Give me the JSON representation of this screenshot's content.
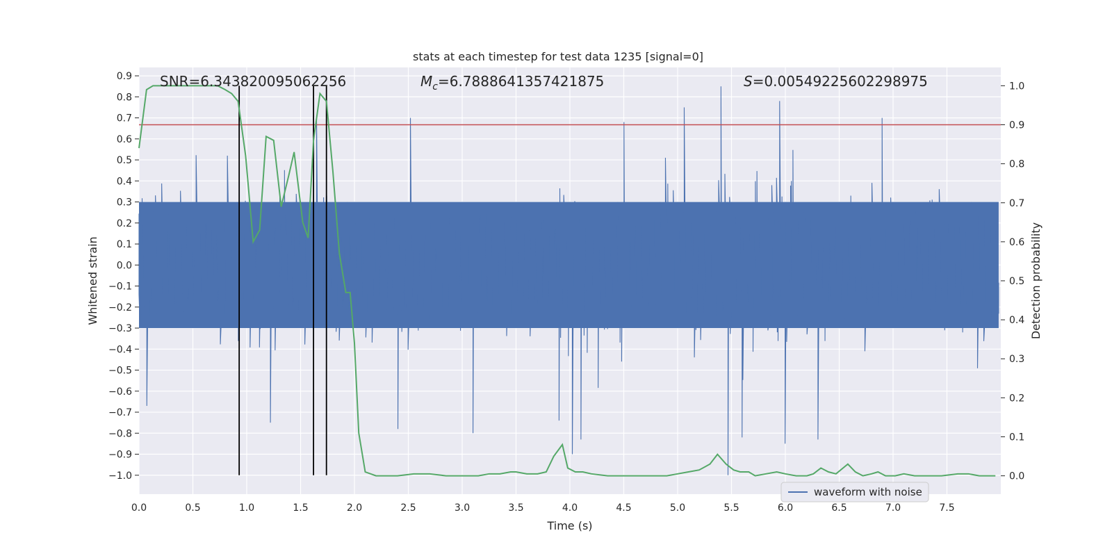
{
  "chart_data": {
    "type": "line",
    "title": "stats at each timestep for test data 1235 [signal=0]",
    "xlabel": "Time (s)",
    "ylabel": "Whitened strain",
    "y2label": "Detection probability",
    "xlim": [
      0.0,
      8.0
    ],
    "ylim": [
      -1.09,
      0.94
    ],
    "y2lim": [
      -0.047,
      1.047
    ],
    "x_ticks": [
      0.0,
      0.5,
      1.0,
      1.5,
      2.0,
      2.5,
      3.0,
      3.5,
      4.0,
      4.5,
      5.0,
      5.5,
      6.0,
      6.5,
      7.0,
      7.5
    ],
    "x_tick_labels": [
      "0.0",
      "0.5",
      "1.0",
      "1.5",
      "2.0",
      "2.5",
      "3.0",
      "3.5",
      "4.0",
      "4.5",
      "5.0",
      "5.5",
      "6.0",
      "6.5",
      "7.0",
      "7.5"
    ],
    "y_ticks": [
      -1.0,
      -0.9,
      -0.8,
      -0.7,
      -0.6,
      -0.5,
      -0.4,
      -0.3,
      -0.2,
      -0.1,
      0.0,
      0.1,
      0.2,
      0.3,
      0.4,
      0.5,
      0.6,
      0.7,
      0.8,
      0.9
    ],
    "y_tick_labels": [
      "−1.0",
      "−0.9",
      "−0.8",
      "−0.7",
      "−0.6",
      "−0.5",
      "−0.4",
      "−0.3",
      "−0.2",
      "−0.1",
      "0.0",
      "0.1",
      "0.2",
      "0.3",
      "0.4",
      "0.5",
      "0.6",
      "0.7",
      "0.8",
      "0.9"
    ],
    "y2_ticks": [
      0.0,
      0.1,
      0.2,
      0.3,
      0.4,
      0.5,
      0.6,
      0.7,
      0.8,
      0.9,
      1.0
    ],
    "y2_tick_labels": [
      "0.0",
      "0.1",
      "0.2",
      "0.3",
      "0.4",
      "0.5",
      "0.6",
      "0.7",
      "0.8",
      "0.9",
      "1.0"
    ],
    "annotations": {
      "snr": "SNR=6.343820095062256",
      "mc_symbol": "M",
      "mc_subscript": "c",
      "mc_value": "=6.7888641357421875",
      "s_symbol": "S",
      "s_value": "=0.00549225602298975"
    },
    "legend": {
      "entries": [
        "waveform with noise"
      ],
      "placement": "lower-right"
    },
    "grid": true,
    "colors": {
      "background": "#eaeaf2",
      "grid": "#ffffff",
      "waveform": "#4c72b0",
      "probability": "#55a868",
      "threshold": "#c44e52",
      "markers": "#000000"
    },
    "threshold": {
      "axis": "y2",
      "value": 0.9
    },
    "vertical_markers_x": [
      0.93,
      1.62,
      1.74
    ],
    "waveform_envelope": {
      "typical_amplitude": 0.3,
      "peak_amplitude": 0.85,
      "n_samples": 1100
    },
    "series": [
      {
        "name": "waveform with noise",
        "axis": "y",
        "kind": "noise",
        "peaks": [
          {
            "x": 0.07,
            "y": -0.67
          },
          {
            "x": 0.82,
            "y": 0.52
          },
          {
            "x": 1.22,
            "y": -0.75
          },
          {
            "x": 1.65,
            "y": 0.7
          },
          {
            "x": 2.4,
            "y": -0.78
          },
          {
            "x": 2.52,
            "y": 0.7
          },
          {
            "x": 3.1,
            "y": -0.8
          },
          {
            "x": 3.9,
            "y": -0.74
          },
          {
            "x": 4.02,
            "y": -0.9
          },
          {
            "x": 4.1,
            "y": -0.83
          },
          {
            "x": 4.5,
            "y": 0.68
          },
          {
            "x": 5.06,
            "y": 0.75
          },
          {
            "x": 5.4,
            "y": 0.85
          },
          {
            "x": 5.47,
            "y": -1.0
          },
          {
            "x": 5.6,
            "y": -0.82
          },
          {
            "x": 5.95,
            "y": 0.78
          },
          {
            "x": 6.0,
            "y": -0.85
          },
          {
            "x": 6.3,
            "y": -0.83
          },
          {
            "x": 6.9,
            "y": 0.7
          }
        ]
      },
      {
        "name": "",
        "axis": "y2",
        "kind": "probability",
        "x": [
          0.0,
          0.07,
          0.13,
          0.3,
          0.5,
          0.6,
          0.73,
          0.8,
          0.86,
          0.92,
          0.99,
          1.06,
          1.12,
          1.18,
          1.25,
          1.32,
          1.39,
          1.44,
          1.52,
          1.57,
          1.62,
          1.68,
          1.74,
          1.8,
          1.86,
          1.92,
          1.96,
          2.0,
          2.04,
          2.1,
          2.2,
          2.4,
          2.55,
          2.7,
          2.85,
          3.0,
          3.15,
          3.25,
          3.35,
          3.45,
          3.5,
          3.6,
          3.7,
          3.78,
          3.85,
          3.93,
          3.98,
          4.05,
          4.12,
          4.2,
          4.35,
          4.5,
          4.7,
          4.9,
          5.0,
          5.1,
          5.2,
          5.3,
          5.37,
          5.45,
          5.52,
          5.58,
          5.66,
          5.72,
          5.82,
          5.92,
          6.0,
          6.1,
          6.2,
          6.26,
          6.33,
          6.4,
          6.47,
          6.58,
          6.65,
          6.72,
          6.8,
          6.86,
          6.93,
          7.02,
          7.1,
          7.2,
          7.3,
          7.45,
          7.6,
          7.7,
          7.8,
          7.95
        ],
        "y": [
          0.84,
          0.99,
          1.0,
          1.0,
          1.0,
          1.0,
          1.0,
          0.99,
          0.98,
          0.96,
          0.82,
          0.6,
          0.63,
          0.87,
          0.86,
          0.69,
          0.77,
          0.83,
          0.65,
          0.61,
          0.86,
          0.98,
          0.96,
          0.78,
          0.57,
          0.47,
          0.47,
          0.34,
          0.11,
          0.01,
          0.0,
          0.0,
          0.005,
          0.005,
          0.0,
          0.0,
          0.0,
          0.005,
          0.005,
          0.01,
          0.01,
          0.005,
          0.005,
          0.01,
          0.05,
          0.08,
          0.02,
          0.01,
          0.01,
          0.005,
          0.0,
          0.0,
          0.0,
          0.0,
          0.005,
          0.01,
          0.015,
          0.03,
          0.055,
          0.03,
          0.015,
          0.01,
          0.01,
          0.0,
          0.005,
          0.01,
          0.005,
          0.0,
          0.0,
          0.005,
          0.02,
          0.01,
          0.005,
          0.03,
          0.01,
          0.0,
          0.005,
          0.01,
          0.0,
          0.0,
          0.005,
          0.0,
          0.0,
          0.0,
          0.005,
          0.005,
          0.0,
          0.0
        ]
      }
    ]
  }
}
